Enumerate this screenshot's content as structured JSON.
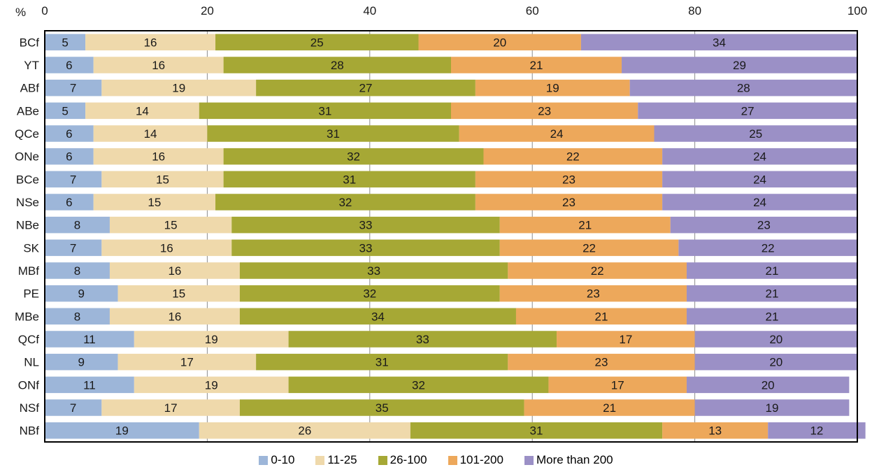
{
  "chart_data": {
    "type": "bar",
    "orientation": "horizontal",
    "stacked": true,
    "title": "",
    "xlabel": "",
    "ylabel": "",
    "unit_label": "%",
    "xlim": [
      0,
      100
    ],
    "x_ticks": [
      0,
      20,
      40,
      60,
      80,
      100
    ],
    "grid": true,
    "legend_position": "bottom",
    "categories": [
      "BCf",
      "YT",
      "ABf",
      "ABe",
      "QCe",
      "ONe",
      "BCe",
      "NSe",
      "NBe",
      "SK",
      "MBf",
      "PE",
      "MBe",
      "QCf",
      "NL",
      "ONf",
      "NSf",
      "NBf"
    ],
    "series": [
      {
        "name": "0-10",
        "color": "#9db6d9",
        "values": [
          5,
          6,
          7,
          5,
          6,
          6,
          7,
          6,
          8,
          7,
          8,
          9,
          8,
          11,
          9,
          11,
          7,
          19
        ]
      },
      {
        "name": "11-25",
        "color": "#efd9ab",
        "values": [
          16,
          16,
          19,
          14,
          14,
          16,
          15,
          15,
          15,
          16,
          16,
          15,
          16,
          19,
          17,
          19,
          17,
          26
        ]
      },
      {
        "name": "26-100",
        "color": "#a6a835",
        "values": [
          25,
          28,
          27,
          31,
          31,
          32,
          31,
          32,
          33,
          33,
          33,
          32,
          34,
          33,
          31,
          32,
          35,
          31
        ]
      },
      {
        "name": "101-200",
        "color": "#eda85b",
        "values": [
          20,
          21,
          19,
          23,
          24,
          22,
          23,
          23,
          21,
          22,
          22,
          23,
          21,
          17,
          23,
          17,
          21,
          13
        ]
      },
      {
        "name": "More than 200",
        "color": "#9b90c6",
        "values": [
          34,
          29,
          28,
          27,
          25,
          24,
          24,
          24,
          23,
          22,
          21,
          21,
          21,
          20,
          20,
          20,
          19,
          12
        ]
      }
    ]
  }
}
